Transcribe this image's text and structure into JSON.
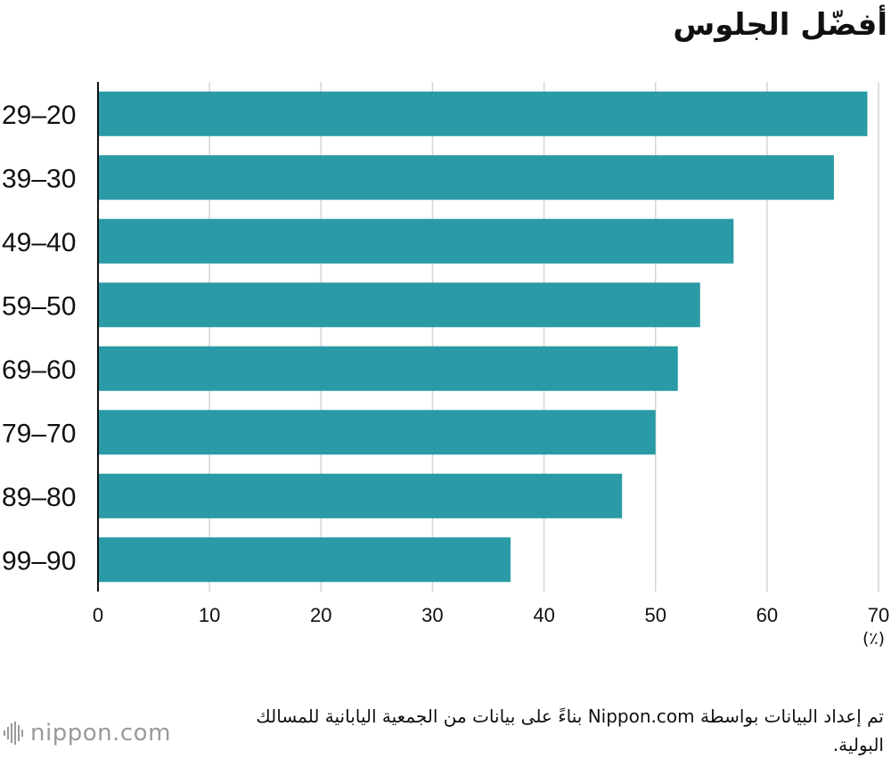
{
  "header": {
    "title": "أفضّل الجلوس"
  },
  "chart_data": {
    "type": "bar",
    "orientation": "horizontal",
    "title": "أفضّل الجلوس",
    "categories": [
      "29–20",
      "39–30",
      "49–40",
      "59–50",
      "69–60",
      "79–70",
      "89–80",
      "99–90"
    ],
    "values": [
      69,
      66,
      57,
      54,
      52,
      50,
      47,
      37
    ],
    "xlim": [
      0,
      70
    ],
    "xticks": [
      0,
      10,
      20,
      30,
      40,
      50,
      60,
      70
    ],
    "unit": "(٪)",
    "grid": true,
    "bar_color": "#2a9aa6",
    "grid_color": "#d4d4d4"
  },
  "source": "تم إعداد البيانات بواسطة Nippon.com بناءً على بيانات من الجمعية اليابانية للمسالك البولية.",
  "brand": {
    "logo_text": "nippon.com",
    "logo_icon": "nippon-logo-icon"
  }
}
